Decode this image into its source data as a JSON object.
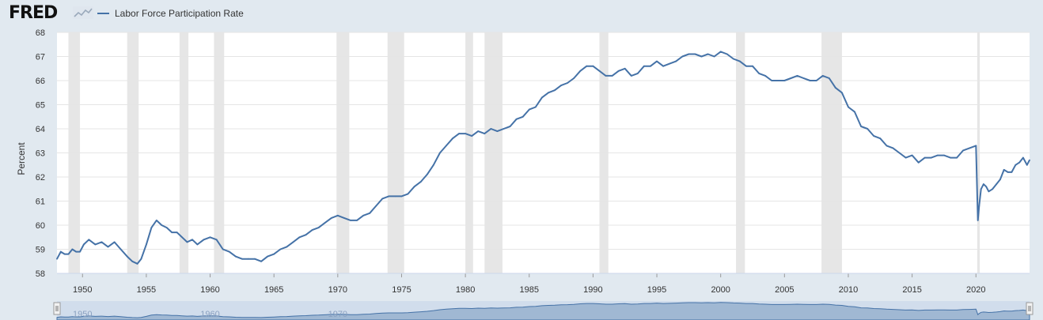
{
  "header": {
    "logo_text": "FRED",
    "logo_icon": "fred-chart-icon",
    "legend_label": "Labor Force Participation Rate",
    "legend_color": "#4572a7"
  },
  "colors": {
    "background": "#e1e9f0",
    "plot_background": "#ffffff",
    "line": "#4572a7",
    "recession": "#e6e6e6",
    "gridline": "#e5e5e5",
    "navigator_fill": "#c5d3ea",
    "navigator_handle": "#f2f2f2"
  },
  "chart_data": {
    "type": "line",
    "title": "",
    "xlabel": "",
    "ylabel": "Percent",
    "xlim": [
      1948,
      2024.2
    ],
    "ylim": [
      58,
      68
    ],
    "grid": true,
    "legend_placement": "top-left",
    "y_ticks": [
      "58",
      "59",
      "60",
      "61",
      "62",
      "63",
      "64",
      "65",
      "66",
      "67",
      "68"
    ],
    "x_ticks": [
      "1950",
      "1955",
      "1960",
      "1965",
      "1970",
      "1975",
      "1980",
      "1985",
      "1990",
      "1995",
      "2000",
      "2005",
      "2010",
      "2015",
      "2020"
    ],
    "recessions": [
      [
        1948.9,
        1949.8
      ],
      [
        1953.5,
        1954.4
      ],
      [
        1957.6,
        1958.3
      ],
      [
        1960.3,
        1961.1
      ],
      [
        1969.9,
        1970.9
      ],
      [
        1973.9,
        1975.2
      ],
      [
        1980.0,
        1980.6
      ],
      [
        1981.5,
        1982.9
      ],
      [
        1990.5,
        1991.2
      ],
      [
        2001.2,
        2001.9
      ],
      [
        2007.9,
        2009.5
      ],
      [
        2020.1,
        2020.3
      ]
    ],
    "series": [
      {
        "name": "Labor Force Participation Rate",
        "x": [
          1948.0,
          1948.3,
          1948.6,
          1948.9,
          1949.2,
          1949.5,
          1949.8,
          1950.1,
          1950.5,
          1951.0,
          1951.5,
          1952.0,
          1952.5,
          1953.0,
          1953.5,
          1953.9,
          1954.3,
          1954.6,
          1955.0,
          1955.4,
          1955.8,
          1956.2,
          1956.6,
          1957.0,
          1957.4,
          1957.8,
          1958.2,
          1958.6,
          1959.0,
          1959.5,
          1960.0,
          1960.5,
          1961.0,
          1961.5,
          1962.0,
          1962.5,
          1963.0,
          1963.5,
          1964.0,
          1964.5,
          1965.0,
          1965.5,
          1966.0,
          1966.5,
          1967.0,
          1967.5,
          1968.0,
          1968.5,
          1969.0,
          1969.5,
          1970.0,
          1970.5,
          1971.0,
          1971.5,
          1972.0,
          1972.5,
          1973.0,
          1973.5,
          1974.0,
          1974.5,
          1975.0,
          1975.5,
          1976.0,
          1976.5,
          1977.0,
          1977.5,
          1978.0,
          1978.5,
          1979.0,
          1979.5,
          1980.0,
          1980.5,
          1981.0,
          1981.5,
          1982.0,
          1982.5,
          1983.0,
          1983.5,
          1984.0,
          1984.5,
          1985.0,
          1985.5,
          1986.0,
          1986.5,
          1987.0,
          1987.5,
          1988.0,
          1988.5,
          1989.0,
          1989.5,
          1990.0,
          1990.5,
          1991.0,
          1991.5,
          1992.0,
          1992.5,
          1993.0,
          1993.5,
          1994.0,
          1994.5,
          1995.0,
          1995.5,
          1996.0,
          1996.5,
          1997.0,
          1997.5,
          1998.0,
          1998.5,
          1999.0,
          1999.5,
          2000.0,
          2000.5,
          2001.0,
          2001.5,
          2002.0,
          2002.5,
          2003.0,
          2003.5,
          2004.0,
          2004.5,
          2005.0,
          2005.5,
          2006.0,
          2006.5,
          2007.0,
          2007.5,
          2008.0,
          2008.5,
          2009.0,
          2009.5,
          2010.0,
          2010.5,
          2011.0,
          2011.5,
          2012.0,
          2012.5,
          2013.0,
          2013.5,
          2014.0,
          2014.5,
          2015.0,
          2015.5,
          2016.0,
          2016.5,
          2017.0,
          2017.5,
          2018.0,
          2018.5,
          2019.0,
          2019.5,
          2020.0,
          2020.15,
          2020.25,
          2020.4,
          2020.6,
          2020.8,
          2021.0,
          2021.3,
          2021.6,
          2021.9,
          2022.2,
          2022.5,
          2022.8,
          2023.1,
          2023.4,
          2023.7,
          2024.0,
          2024.2
        ],
        "values": [
          58.6,
          58.9,
          58.8,
          58.8,
          59.0,
          58.9,
          58.9,
          59.2,
          59.4,
          59.2,
          59.3,
          59.1,
          59.3,
          59.0,
          58.7,
          58.5,
          58.4,
          58.6,
          59.2,
          59.9,
          60.2,
          60.0,
          59.9,
          59.7,
          59.7,
          59.5,
          59.3,
          59.4,
          59.2,
          59.4,
          59.5,
          59.4,
          59.0,
          58.9,
          58.7,
          58.6,
          58.6,
          58.6,
          58.5,
          58.7,
          58.8,
          59.0,
          59.1,
          59.3,
          59.5,
          59.6,
          59.8,
          59.9,
          60.1,
          60.3,
          60.4,
          60.3,
          60.2,
          60.2,
          60.4,
          60.5,
          60.8,
          61.1,
          61.2,
          61.2,
          61.2,
          61.3,
          61.6,
          61.8,
          62.1,
          62.5,
          63.0,
          63.3,
          63.6,
          63.8,
          63.8,
          63.7,
          63.9,
          63.8,
          64.0,
          63.9,
          64.0,
          64.1,
          64.4,
          64.5,
          64.8,
          64.9,
          65.3,
          65.5,
          65.6,
          65.8,
          65.9,
          66.1,
          66.4,
          66.6,
          66.6,
          66.4,
          66.2,
          66.2,
          66.4,
          66.5,
          66.2,
          66.3,
          66.6,
          66.6,
          66.8,
          66.6,
          66.7,
          66.8,
          67.0,
          67.1,
          67.1,
          67.0,
          67.1,
          67.0,
          67.2,
          67.1,
          66.9,
          66.8,
          66.6,
          66.6,
          66.3,
          66.2,
          66.0,
          66.0,
          66.0,
          66.1,
          66.2,
          66.1,
          66.0,
          66.0,
          66.2,
          66.1,
          65.7,
          65.5,
          64.9,
          64.7,
          64.1,
          64.0,
          63.7,
          63.6,
          63.3,
          63.2,
          63.0,
          62.8,
          62.9,
          62.6,
          62.8,
          62.8,
          62.9,
          62.9,
          62.8,
          62.8,
          63.1,
          63.2,
          63.3,
          60.2,
          60.8,
          61.5,
          61.7,
          61.6,
          61.4,
          61.5,
          61.7,
          61.9,
          62.3,
          62.2,
          62.2,
          62.5,
          62.6,
          62.8,
          62.5,
          62.7
        ]
      }
    ]
  },
  "navigator": {
    "x_ticks": [
      "1950",
      "1960",
      "1970"
    ],
    "left_handle_icon": "left-drag-handle-icon",
    "right_handle_icon": "right-drag-handle-icon"
  }
}
